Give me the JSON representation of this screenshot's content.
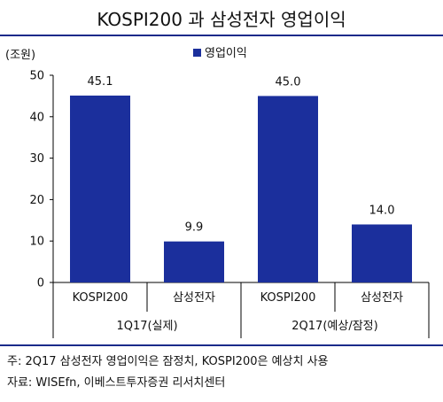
{
  "title": "KOSPI200 과 삼성전자 영업이익",
  "chart_data": {
    "type": "bar",
    "unit_label": "(조원)",
    "legend": "영업이익",
    "legend_position": "top-right",
    "bar_color": "#1b2f9c",
    "ylim": [
      0,
      50
    ],
    "yticks": [
      0,
      10,
      20,
      30,
      40,
      50
    ],
    "grid": false,
    "categories": [
      "KOSPI200",
      "삼성전자",
      "KOSPI200",
      "삼성전자"
    ],
    "values": [
      45.1,
      9.9,
      45.0,
      14.0
    ],
    "value_labels": [
      "45.1",
      "9.9",
      "45.0",
      "14.0"
    ],
    "groups": [
      {
        "label": "1Q17(실제)",
        "members": [
          0,
          1
        ]
      },
      {
        "label": "2Q17(예상/잠정)",
        "members": [
          2,
          3
        ]
      }
    ]
  },
  "notes": {
    "note": "주: 2Q17 삼성전자 영업이익은 잠정치, KOSPI200은 예상치 사용",
    "source": "자료: WISEfn, 이베스트투자증권 리서치센터"
  }
}
